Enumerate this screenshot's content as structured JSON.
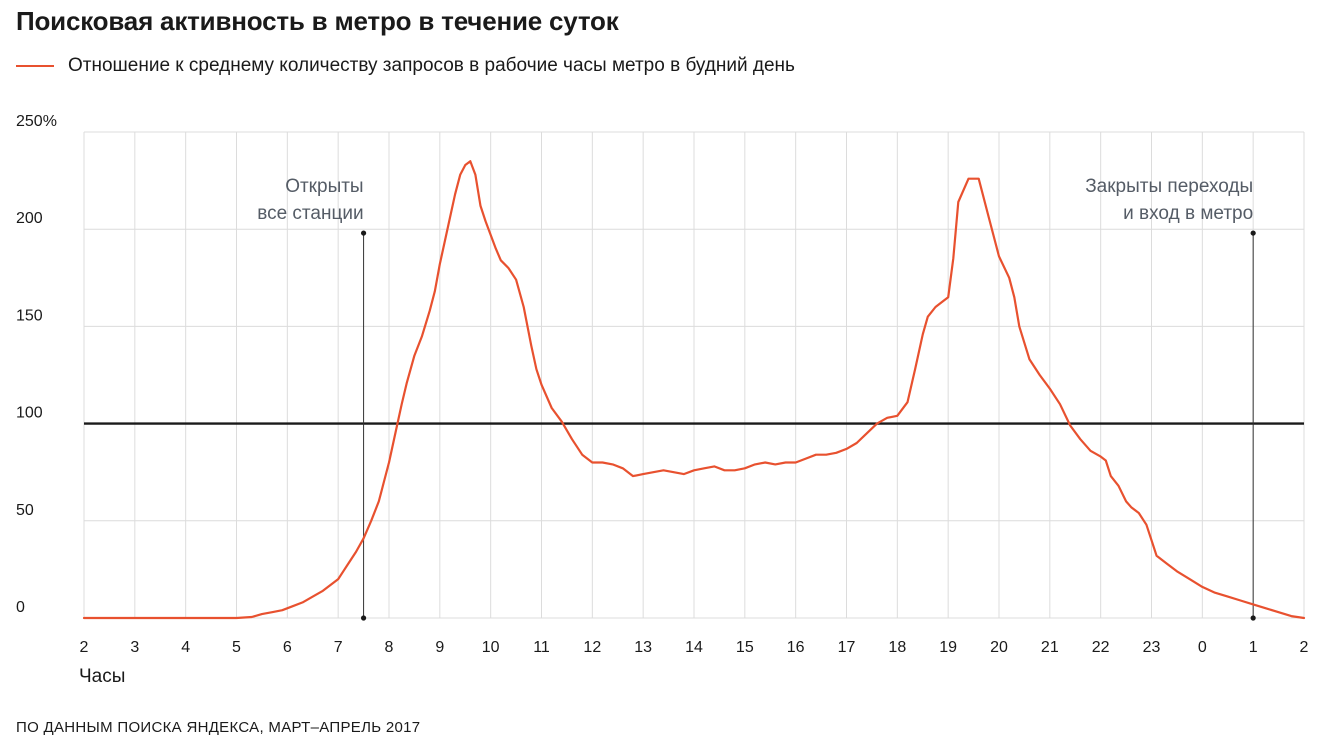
{
  "chart_data": {
    "type": "line",
    "title": "Поисковая активность в метро в течение суток",
    "series_label": "Отношение к среднему количеству запросов в рабочие часы метро в будний день",
    "line_color": "#e8512f",
    "reference_color": "#1a1a1a",
    "grid": true,
    "xlabel": "Часы",
    "y_tick_labels": [
      "0",
      "50",
      "100",
      "150",
      "200",
      "250%"
    ],
    "y_ticks": [
      0,
      50,
      100,
      150,
      200,
      250
    ],
    "ylim": [
      0,
      250
    ],
    "x_tick_labels": [
      "2",
      "3",
      "4",
      "5",
      "6",
      "7",
      "8",
      "9",
      "10",
      "11",
      "12",
      "13",
      "14",
      "15",
      "16",
      "17",
      "18",
      "19",
      "20",
      "21",
      "22",
      "23",
      "0",
      "1",
      "2"
    ],
    "reference_line": 100,
    "annotations": [
      {
        "line1": "Открыты",
        "line2": "все станции",
        "x": 5.5,
        "y": 198,
        "y0": 0
      },
      {
        "line1": "Закрыты переходы",
        "line2": "и вход в метро",
        "x": 23.0,
        "y": 198,
        "y0": 0
      }
    ],
    "source": "ПО ДАННЫМ ПОИСКА ЯНДЕКСА, МАРТ–АПРЕЛЬ 2017",
    "series": [
      {
        "x": [
          0,
          1,
          2,
          3,
          3.3,
          3.5,
          3.7,
          3.9,
          4.1,
          4.3,
          4.5,
          4.7,
          4.9,
          5.0,
          5.1,
          5.2,
          5.35,
          5.5,
          5.65,
          5.8,
          5.9,
          6.0,
          6.15,
          6.25,
          6.35,
          6.5,
          6.65,
          6.8,
          6.9,
          7.0,
          7.1,
          7.2,
          7.3,
          7.4,
          7.5,
          7.6,
          7.7,
          7.8,
          7.9,
          8.0,
          8.1,
          8.2,
          8.35,
          8.5,
          8.65,
          8.8,
          8.9,
          9.0,
          9.2,
          9.4,
          9.6,
          9.8,
          10.0,
          10.2,
          10.4,
          10.6,
          10.8,
          11.0,
          11.2,
          11.4,
          11.6,
          11.8,
          12.0,
          12.2,
          12.4,
          12.6,
          12.8,
          13.0,
          13.2,
          13.4,
          13.6,
          13.8,
          14.0,
          14.2,
          14.4,
          14.6,
          14.8,
          15.0,
          15.2,
          15.4,
          15.6,
          15.8,
          16.0,
          16.2,
          16.35,
          16.5,
          16.6,
          16.75,
          16.9,
          17.0,
          17.1,
          17.2,
          17.4,
          17.6,
          17.8,
          18.0,
          18.2,
          18.3,
          18.4,
          18.6,
          18.8,
          19.0,
          19.2,
          19.4,
          19.6,
          19.8,
          20.0,
          20.1,
          20.2,
          20.35,
          20.5,
          20.6,
          20.75,
          20.9,
          21.0,
          21.1,
          21.3,
          21.5,
          21.75,
          22.0,
          22.25,
          22.5,
          22.75,
          23.0,
          23.25,
          23.5,
          23.75,
          24.0
        ],
        "y": [
          0,
          0,
          0,
          0,
          0.5,
          2,
          3,
          4,
          6,
          8,
          11,
          14,
          18,
          20,
          24,
          28,
          34,
          41,
          50,
          60,
          70,
          80,
          98,
          110,
          121,
          135,
          145,
          158,
          168,
          182,
          194,
          206,
          218,
          228,
          233,
          235,
          228,
          212,
          204,
          197,
          190,
          184,
          180,
          174,
          160,
          140,
          128,
          120,
          108,
          101,
          92,
          84,
          80,
          80,
          79,
          77,
          73,
          74,
          75,
          76,
          75,
          74,
          76,
          77,
          78,
          76,
          76,
          77,
          79,
          80,
          79,
          80,
          80,
          82,
          84,
          84,
          85,
          87,
          90,
          95,
          100,
          103,
          104,
          111,
          128,
          146,
          155,
          160,
          163,
          165,
          185,
          214,
          226,
          226,
          206,
          186,
          175,
          165,
          150,
          133,
          125,
          118,
          110,
          99,
          92,
          86,
          83,
          81,
          73,
          68,
          60,
          57,
          54,
          48,
          40,
          32,
          28,
          24,
          20,
          16,
          13,
          11,
          9,
          7,
          5,
          3,
          1,
          0
        ]
      }
    ]
  }
}
